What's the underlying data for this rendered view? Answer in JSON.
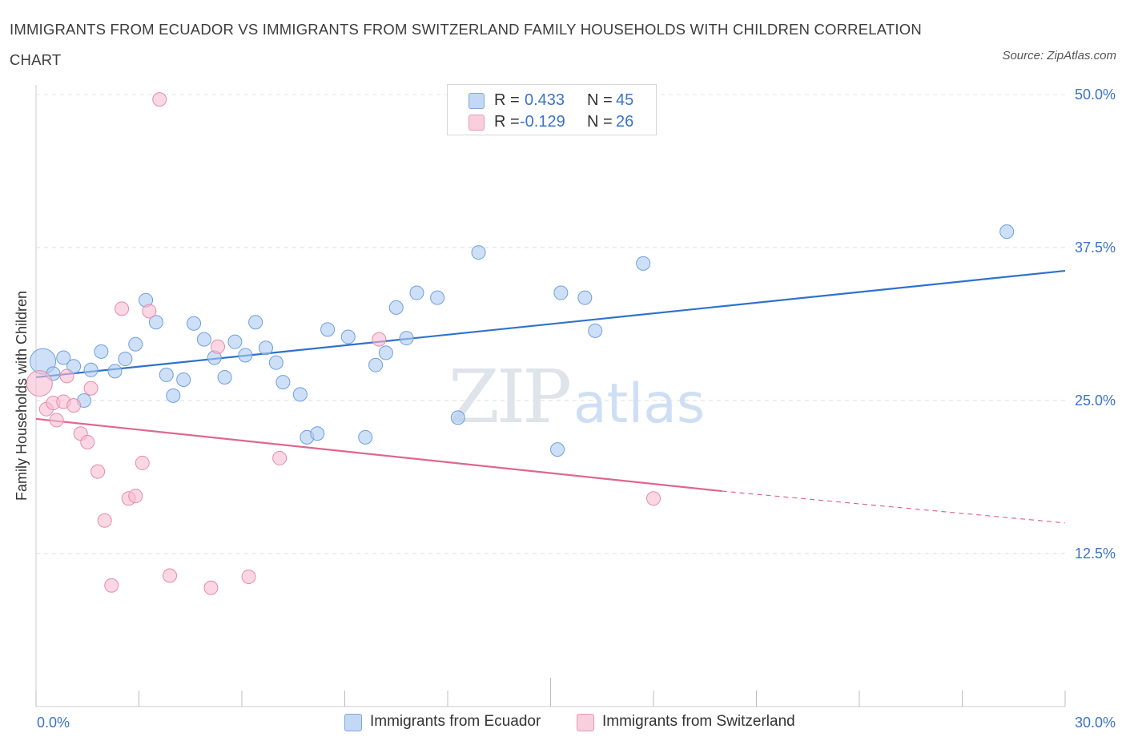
{
  "title": "IMMIGRANTS FROM ECUADOR VS IMMIGRANTS FROM SWITZERLAND FAMILY HOUSEHOLDS WITH CHILDREN CORRELATION CHART",
  "source": "Source: ZipAtlas.com",
  "watermark": {
    "zip": "ZIP",
    "atlas": "atlas"
  },
  "legend": {
    "r_label": "R =",
    "n_label": "N =",
    "rows": [
      {
        "r": "0.433",
        "n": "45",
        "color": "#aecbf2"
      },
      {
        "r": "-0.129",
        "n": "26",
        "color": "#f6bcd0"
      }
    ]
  },
  "chart_data": {
    "type": "scatter",
    "xlabel": "",
    "ylabel": "Family Households with Children",
    "xlim": [
      0,
      30
    ],
    "ylim": [
      0,
      50
    ],
    "x_tick_labels": [
      "0.0%",
      "30.0%"
    ],
    "y_ticks": [
      12.5,
      25.0,
      37.5,
      50.0
    ],
    "y_tick_labels": [
      "12.5%",
      "25.0%",
      "37.5%",
      "50.0%"
    ],
    "grid": "horizontal dashed",
    "legend_placement": "bottom",
    "series": [
      {
        "name": "Immigrants from Ecuador",
        "color": "#aecbf2",
        "stroke": "#6f9fdc",
        "trend_color": "#2f72cc",
        "trend": {
          "x0": 0,
          "y0": 26.9,
          "x1": 30,
          "y1": 35.6
        },
        "points": [
          [
            0.2,
            28.2
          ],
          [
            0.5,
            27.2
          ],
          [
            0.8,
            28.5
          ],
          [
            1.1,
            27.8
          ],
          [
            1.4,
            25.0
          ],
          [
            1.6,
            27.5
          ],
          [
            1.9,
            29.0
          ],
          [
            2.3,
            27.4
          ],
          [
            2.6,
            28.4
          ],
          [
            2.9,
            29.6
          ],
          [
            3.2,
            33.2
          ],
          [
            3.5,
            31.4
          ],
          [
            3.8,
            27.1
          ],
          [
            4.0,
            25.4
          ],
          [
            4.3,
            26.7
          ],
          [
            4.6,
            31.3
          ],
          [
            4.9,
            30.0
          ],
          [
            5.2,
            28.5
          ],
          [
            5.5,
            26.9
          ],
          [
            5.8,
            29.8
          ],
          [
            6.1,
            28.7
          ],
          [
            6.4,
            31.4
          ],
          [
            6.7,
            29.3
          ],
          [
            7.0,
            28.1
          ],
          [
            7.2,
            26.5
          ],
          [
            7.7,
            25.5
          ],
          [
            7.9,
            22.0
          ],
          [
            8.2,
            22.3
          ],
          [
            8.5,
            30.8
          ],
          [
            9.1,
            30.2
          ],
          [
            9.6,
            22.0
          ],
          [
            9.9,
            27.9
          ],
          [
            10.2,
            28.9
          ],
          [
            10.5,
            32.6
          ],
          [
            10.8,
            30.1
          ],
          [
            11.1,
            33.8
          ],
          [
            11.7,
            33.4
          ],
          [
            12.3,
            23.6
          ],
          [
            12.9,
            37.1
          ],
          [
            15.2,
            21.0
          ],
          [
            15.3,
            33.8
          ],
          [
            16.0,
            33.4
          ],
          [
            16.3,
            30.7
          ],
          [
            17.7,
            36.2
          ],
          [
            28.3,
            38.8
          ]
        ]
      },
      {
        "name": "Immigrants from Switzerland",
        "color": "#f6bcd0",
        "stroke": "#e58cab",
        "trend_color": "#e0668f",
        "trend": {
          "x0": 0,
          "y0": 23.5,
          "x1": 20,
          "y1": 17.6
        },
        "trend_dashed": {
          "x0": 20,
          "y0": 17.6,
          "x1": 30,
          "y1": 15.0
        },
        "points": [
          [
            0.1,
            26.4
          ],
          [
            0.3,
            24.3
          ],
          [
            0.5,
            24.8
          ],
          [
            0.6,
            23.4
          ],
          [
            0.8,
            24.9
          ],
          [
            0.9,
            27.0
          ],
          [
            1.1,
            24.6
          ],
          [
            1.3,
            22.3
          ],
          [
            1.5,
            21.6
          ],
          [
            1.6,
            26.0
          ],
          [
            1.8,
            19.2
          ],
          [
            2.0,
            15.2
          ],
          [
            2.2,
            9.9
          ],
          [
            2.5,
            32.5
          ],
          [
            2.7,
            17.0
          ],
          [
            2.9,
            17.2
          ],
          [
            3.1,
            19.9
          ],
          [
            3.3,
            32.3
          ],
          [
            3.6,
            49.6
          ],
          [
            3.9,
            10.7
          ],
          [
            5.1,
            9.7
          ],
          [
            5.3,
            29.4
          ],
          [
            6.2,
            10.6
          ],
          [
            7.1,
            20.3
          ],
          [
            10.0,
            30.0
          ],
          [
            18.0,
            17.0
          ]
        ]
      }
    ]
  }
}
